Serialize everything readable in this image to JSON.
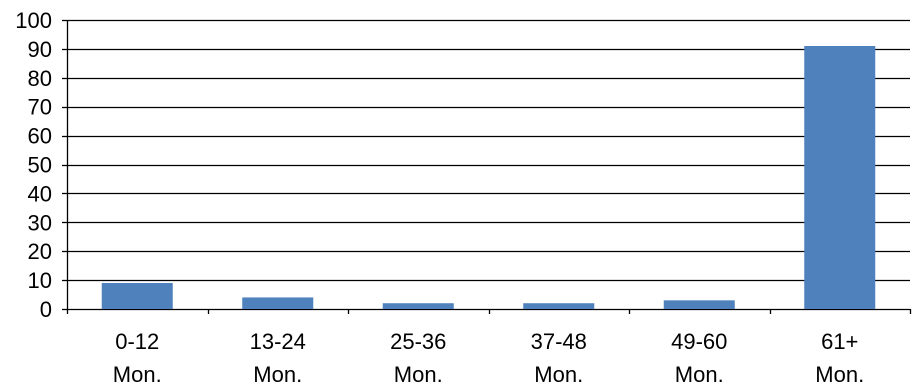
{
  "colors": {
    "bar": "#4f81bd",
    "gridline": "#000000",
    "axis": "#000000",
    "text": "#000000",
    "background": "#ffffff"
  },
  "chart_data": {
    "type": "bar",
    "categories": [
      [
        "0-12",
        "Mon."
      ],
      [
        "13-24",
        "Mon."
      ],
      [
        "25-36",
        "Mon."
      ],
      [
        "37-48",
        "Mon."
      ],
      [
        "49-60",
        "Mon."
      ],
      [
        "61+",
        "Mon."
      ]
    ],
    "values": [
      9,
      4,
      2,
      2,
      3,
      91
    ],
    "title": "",
    "xlabel": "",
    "ylabel": "",
    "ylim": [
      0,
      100
    ],
    "yticks": [
      "0",
      "10",
      "20",
      "30",
      "40",
      "50",
      "60",
      "70",
      "80",
      "90",
      "100"
    ],
    "grid": true,
    "legend": "none"
  }
}
